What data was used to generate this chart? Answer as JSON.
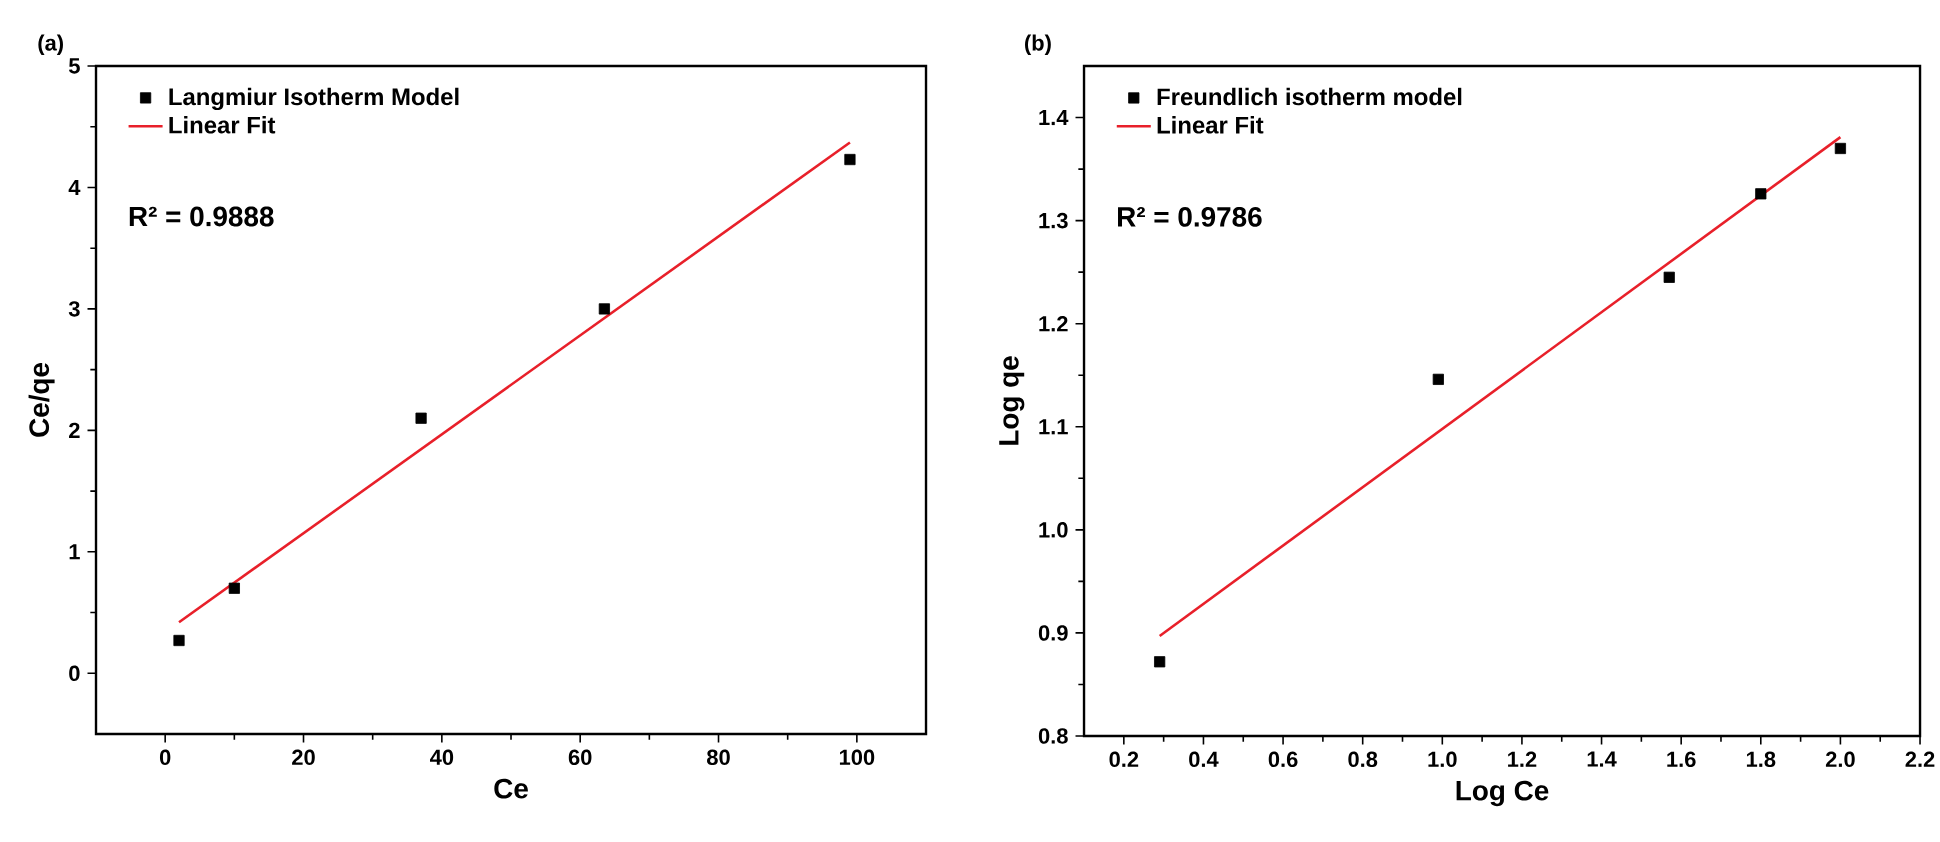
{
  "chart_data": [
    {
      "type": "scatter",
      "title": "(a)",
      "xlabel": "Ce",
      "ylabel": "Ce/qe",
      "xlim": [
        -10,
        110
      ],
      "ylim": [
        -0.5,
        5
      ],
      "xticks": [
        0,
        20,
        40,
        60,
        80,
        100
      ],
      "yticks": [
        0,
        1,
        2,
        3,
        4,
        5
      ],
      "legend": "top left",
      "grid": false,
      "annotations": [
        "R² = 0.9888"
      ],
      "series": [
        {
          "name": "Langmiur Isotherm Model",
          "marker": "square",
          "color": "#000000",
          "x": [
            2,
            10,
            37,
            63.5,
            99
          ],
          "values": [
            0.27,
            0.7,
            2.1,
            3.0,
            4.23
          ]
        },
        {
          "name": "Linear Fit",
          "type": "line",
          "marker": "none",
          "line_style": "solid",
          "color": "#e8202a",
          "x": [
            2,
            99
          ],
          "values": [
            0.42,
            4.37
          ]
        }
      ]
    },
    {
      "type": "scatter",
      "title": "(b)",
      "xlabel": "Log Ce",
      "ylabel": "Log qe",
      "xlim": [
        0.1,
        2.2
      ],
      "ylim": [
        0.8,
        1.45
      ],
      "xticks": [
        0.2,
        0.4,
        0.6,
        0.8,
        {
          "value": 1,
          "label": "1.0"
        },
        1.2,
        1.4,
        1.6,
        1.8,
        {
          "value": 2,
          "label": "2.0"
        },
        2.2
      ],
      "yticks": [
        0.8,
        0.9,
        {
          "value": 1,
          "label": "1.0"
        },
        1.1,
        1.2,
        1.3,
        1.4
      ],
      "legend": "top left",
      "grid": false,
      "annotations": [
        "R² = 0.9786"
      ],
      "series": [
        {
          "name": "Freundlich isotherm model",
          "marker": "square",
          "color": "#000000",
          "x": [
            0.29,
            0.99,
            1.57,
            1.8,
            2.0
          ],
          "values": [
            0.872,
            1.146,
            1.245,
            1.326,
            1.37
          ]
        },
        {
          "name": "Linear Fit",
          "type": "line",
          "marker": "none",
          "line_style": "solid",
          "color": "#e8202a",
          "x": [
            0.29,
            2.0
          ],
          "values": [
            0.897,
            1.381
          ]
        }
      ]
    }
  ]
}
